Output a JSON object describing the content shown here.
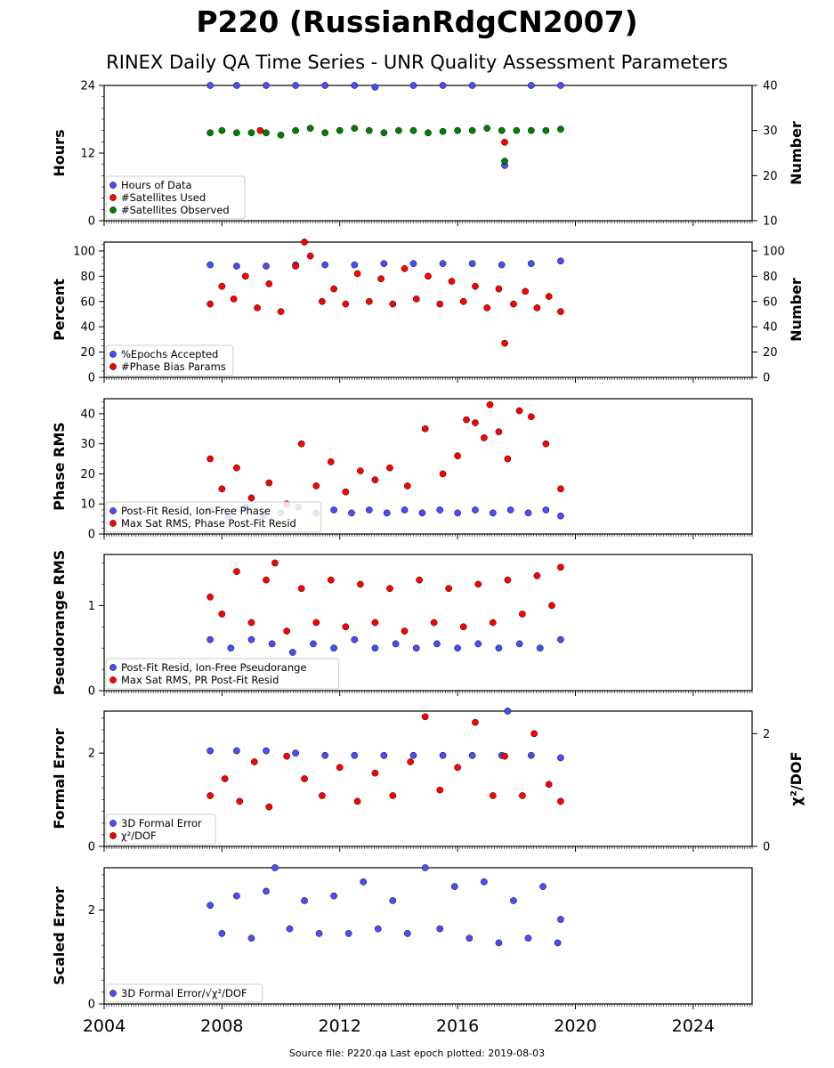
{
  "title": "P220 (RussianRdgCN2007)",
  "subtitle": "RINEX Daily QA Time Series - UNR Quality Assessment Parameters",
  "footer": "Source file: P220.qa Last epoch plotted: 2019-08-03",
  "colors": {
    "blue": "#4b4bff",
    "red": "#ff0000",
    "green": "#008000",
    "edge": "#000000"
  },
  "chart_data": [
    {
      "type": "scatter",
      "panel": "hours",
      "ylabel": "Hours",
      "ylabel_right": "Number",
      "ylim": [
        0,
        24
      ],
      "ylim_right": [
        10,
        40
      ],
      "yticks": [
        0,
        12,
        24
      ],
      "yticks_right": [
        10,
        20,
        30,
        40
      ],
      "xlim": [
        2004,
        2026
      ],
      "legend_position": "lower-left",
      "series": [
        {
          "name": "Hours of Data",
          "axis": "left",
          "color": "blue",
          "x": [
            2007.6,
            2008.5,
            2009.5,
            2010.5,
            2011.5,
            2012.5,
            2013.2,
            2014.5,
            2015.5,
            2016.5,
            2017.6,
            2018.5,
            2019.5
          ],
          "y": [
            24,
            24,
            24,
            24,
            24,
            24,
            23.7,
            24,
            24,
            24,
            9.8,
            24,
            24
          ]
        },
        {
          "name": "#Satellites Used",
          "axis": "right",
          "color": "red",
          "x": [
            2009.3,
            2017.6
          ],
          "y": [
            30,
            27.4
          ]
        },
        {
          "name": "#Satellites Observed",
          "axis": "right",
          "color": "green",
          "x": [
            2007.6,
            2008.0,
            2008.5,
            2009.0,
            2009.5,
            2010.0,
            2010.5,
            2011.0,
            2011.5,
            2012.0,
            2012.5,
            2013.0,
            2013.5,
            2014.0,
            2014.5,
            2015.0,
            2015.5,
            2016.0,
            2016.5,
            2017.0,
            2017.5,
            2017.6,
            2018.0,
            2018.5,
            2019.0,
            2019.5
          ],
          "y": [
            29.5,
            30,
            29.5,
            29.5,
            29.5,
            29,
            30,
            30.5,
            29.5,
            30,
            30.5,
            30,
            29.5,
            30,
            30,
            29.5,
            29.8,
            30,
            30,
            30.5,
            30,
            23.2,
            30,
            30,
            30,
            30.3
          ]
        }
      ]
    },
    {
      "type": "scatter",
      "panel": "percent",
      "ylabel": "Percent",
      "ylabel_right": "Number",
      "ylim": [
        0,
        107
      ],
      "ylim_right": [
        0,
        107
      ],
      "yticks": [
        0,
        20,
        40,
        60,
        80,
        100
      ],
      "yticks_right": [
        0,
        20,
        40,
        60,
        80,
        100
      ],
      "xlim": [
        2004,
        2026
      ],
      "legend_position": "lower-left",
      "series": [
        {
          "name": "%Epochs Accepted",
          "axis": "left",
          "color": "blue",
          "x": [
            2007.6,
            2008.5,
            2009.5,
            2010.5,
            2011.5,
            2012.5,
            2013.5,
            2014.5,
            2015.5,
            2016.5,
            2017.5,
            2018.5,
            2019.5
          ],
          "y": [
            89,
            88,
            88,
            89,
            89,
            89,
            90,
            90,
            90,
            90,
            89,
            90,
            92
          ]
        },
        {
          "name": "#Phase Bias Params",
          "axis": "right",
          "color": "red",
          "x": [
            2007.6,
            2008.0,
            2008.4,
            2008.8,
            2009.2,
            2009.6,
            2010.0,
            2010.5,
            2010.8,
            2011.0,
            2011.4,
            2011.8,
            2012.2,
            2012.6,
            2013.0,
            2013.4,
            2013.8,
            2014.2,
            2014.6,
            2015.0,
            2015.4,
            2015.8,
            2016.2,
            2016.6,
            2017.0,
            2017.4,
            2017.6,
            2017.9,
            2018.3,
            2018.7,
            2019.1,
            2019.5
          ],
          "y": [
            58,
            72,
            62,
            80,
            55,
            74,
            52,
            88,
            107,
            96,
            60,
            70,
            58,
            82,
            60,
            78,
            58,
            86,
            62,
            80,
            58,
            76,
            60,
            72,
            55,
            70,
            27,
            58,
            68,
            55,
            64,
            52
          ]
        }
      ]
    },
    {
      "type": "scatter",
      "panel": "phase-rms",
      "ylabel": "Phase RMS",
      "ylim": [
        0,
        45
      ],
      "yticks": [
        0,
        10,
        20,
        30,
        40
      ],
      "xlim": [
        2004,
        2026
      ],
      "legend_position": "lower-left",
      "series": [
        {
          "name": "Post-Fit Resid, Ion-Free Phase",
          "color": "blue",
          "x": [
            2007.6,
            2008.2,
            2008.8,
            2009.4,
            2010.0,
            2010.6,
            2011.2,
            2011.8,
            2012.4,
            2013.0,
            2013.6,
            2014.2,
            2014.8,
            2015.4,
            2016.0,
            2016.6,
            2017.2,
            2017.8,
            2018.4,
            2019.0,
            2019.5
          ],
          "y": [
            8,
            6,
            9,
            6,
            7,
            9,
            7,
            8,
            7,
            8,
            7,
            8,
            7,
            8,
            7,
            8,
            7,
            8,
            7,
            8,
            6
          ]
        },
        {
          "name": "Max Sat RMS, Phase Post-Fit Resid",
          "color": "red",
          "x": [
            2007.6,
            2008.0,
            2008.5,
            2009.0,
            2009.6,
            2010.2,
            2010.7,
            2011.2,
            2011.7,
            2012.2,
            2012.7,
            2013.2,
            2013.7,
            2014.3,
            2014.9,
            2015.5,
            2016.0,
            2016.3,
            2016.6,
            2016.9,
            2017.1,
            2017.4,
            2017.7,
            2018.1,
            2018.5,
            2019.0,
            2019.5
          ],
          "y": [
            25,
            15,
            22,
            12,
            17,
            10,
            30,
            16,
            24,
            14,
            21,
            18,
            22,
            16,
            35,
            20,
            26,
            38,
            37,
            32,
            43,
            34,
            25,
            41,
            39,
            30,
            15
          ]
        }
      ]
    },
    {
      "type": "scatter",
      "panel": "pseudorange-rms",
      "ylabel": "Pseudorange RMS",
      "ylim": [
        0,
        1.6
      ],
      "yticks": [
        0,
        1
      ],
      "xlim": [
        2004,
        2026
      ],
      "legend_position": "lower-left",
      "series": [
        {
          "name": "Post-Fit Resid, Ion-Free Pseudorange",
          "color": "blue",
          "x": [
            2007.6,
            2008.3,
            2009.0,
            2009.7,
            2010.4,
            2011.1,
            2011.8,
            2012.5,
            2013.2,
            2013.9,
            2014.6,
            2015.3,
            2016.0,
            2016.7,
            2017.4,
            2018.1,
            2018.8,
            2019.5
          ],
          "y": [
            0.6,
            0.5,
            0.6,
            0.55,
            0.45,
            0.55,
            0.5,
            0.6,
            0.5,
            0.55,
            0.5,
            0.55,
            0.5,
            0.55,
            0.5,
            0.55,
            0.5,
            0.6
          ]
        },
        {
          "name": "Max Sat RMS, PR Post-Fit Resid",
          "color": "red",
          "x": [
            2007.6,
            2008.0,
            2008.5,
            2009.0,
            2009.5,
            2009.8,
            2010.2,
            2010.7,
            2011.2,
            2011.7,
            2012.2,
            2012.7,
            2013.2,
            2013.7,
            2014.2,
            2014.7,
            2015.2,
            2015.7,
            2016.2,
            2016.7,
            2017.2,
            2017.7,
            2018.2,
            2018.7,
            2019.2,
            2019.5
          ],
          "y": [
            1.1,
            0.9,
            1.4,
            0.8,
            1.3,
            1.5,
            0.7,
            1.2,
            0.8,
            1.3,
            0.75,
            1.25,
            0.8,
            1.2,
            0.7,
            1.3,
            0.8,
            1.2,
            0.75,
            1.25,
            0.8,
            1.3,
            0.9,
            1.35,
            1.0,
            1.45
          ]
        }
      ]
    },
    {
      "type": "scatter",
      "panel": "formal-error",
      "ylabel": "Formal Error",
      "ylabel_right": "χ²/DOF",
      "ylim": [
        0,
        2.9
      ],
      "ylim_right": [
        0,
        2.4
      ],
      "yticks": [
        0,
        2
      ],
      "yticks_right": [
        0,
        2
      ],
      "xlim": [
        2004,
        2026
      ],
      "legend_position": "lower-left",
      "series": [
        {
          "name": "3D Formal Error",
          "axis": "left",
          "color": "blue",
          "x": [
            2007.6,
            2008.5,
            2009.5,
            2010.5,
            2011.5,
            2012.5,
            2013.5,
            2014.5,
            2015.5,
            2016.5,
            2017.5,
            2017.7,
            2018.5,
            2019.5
          ],
          "y": [
            2.05,
            2.05,
            2.05,
            2.0,
            1.95,
            1.95,
            1.95,
            1.95,
            1.95,
            1.95,
            1.95,
            2.9,
            1.95,
            1.9
          ]
        },
        {
          "name": "χ²/DOF",
          "axis": "right",
          "color": "red",
          "x": [
            2007.6,
            2008.1,
            2008.6,
            2009.1,
            2009.6,
            2010.2,
            2010.8,
            2011.4,
            2012.0,
            2012.6,
            2013.2,
            2013.8,
            2014.4,
            2014.9,
            2015.4,
            2016.0,
            2016.6,
            2017.2,
            2017.6,
            2018.2,
            2018.6,
            2019.1,
            2019.5
          ],
          "y": [
            0.9,
            1.2,
            0.8,
            1.5,
            0.7,
            1.6,
            1.2,
            0.9,
            1.4,
            0.8,
            1.3,
            0.9,
            1.5,
            2.3,
            1.0,
            1.4,
            2.2,
            0.9,
            1.6,
            0.9,
            2.0,
            1.1,
            0.8
          ]
        }
      ]
    },
    {
      "type": "scatter",
      "panel": "scaled-error",
      "ylabel": "Scaled Error",
      "ylim": [
        0,
        2.9
      ],
      "yticks": [
        0,
        2
      ],
      "xlim": [
        2004,
        2026
      ],
      "xticks": [
        2004,
        2008,
        2012,
        2016,
        2020,
        2024
      ],
      "legend_position": "lower-left",
      "series": [
        {
          "name": "3D Formal Error/√χ²/DOF",
          "color": "blue",
          "x": [
            2007.6,
            2008.0,
            2008.5,
            2009.0,
            2009.5,
            2009.8,
            2010.3,
            2010.8,
            2011.3,
            2011.8,
            2012.3,
            2012.8,
            2013.3,
            2013.8,
            2014.3,
            2014.9,
            2015.4,
            2015.9,
            2016.4,
            2016.9,
            2017.4,
            2017.9,
            2018.4,
            2018.9,
            2019.4,
            2019.5
          ],
          "y": [
            2.1,
            1.5,
            2.3,
            1.4,
            2.4,
            2.9,
            1.6,
            2.2,
            1.5,
            2.3,
            1.5,
            2.6,
            1.6,
            2.2,
            1.5,
            2.9,
            1.6,
            2.5,
            1.4,
            2.6,
            1.3,
            2.2,
            1.4,
            2.5,
            1.3,
            1.8
          ]
        }
      ]
    }
  ],
  "legend_labels": {
    "hours": [
      "Hours of Data",
      "#Satellites Used",
      "#Satellites Observed"
    ],
    "percent": [
      "%Epochs Accepted",
      "#Phase Bias Params"
    ],
    "phase": [
      "Post-Fit Resid, Ion-Free Phase",
      "Max Sat RMS, Phase Post-Fit Resid"
    ],
    "pseudorange": [
      "Post-Fit Resid, Ion-Free Pseudorange",
      "Max Sat RMS, PR Post-Fit Resid"
    ],
    "formal": [
      "3D Formal Error",
      "χ²/DOF"
    ],
    "scaled": [
      "3D Formal Error/√χ²/DOF"
    ]
  }
}
